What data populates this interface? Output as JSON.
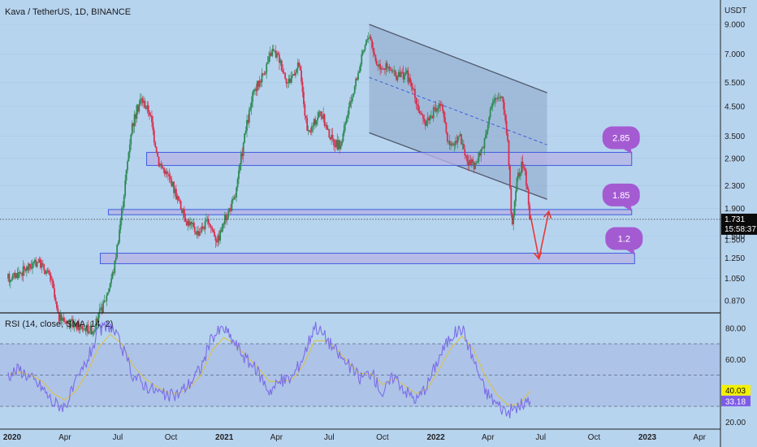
{
  "header": {
    "title": "Kava / TetherUS, 1D, BINANCE",
    "currency": "USDT"
  },
  "colors": {
    "background": "#b7d4ef",
    "up": "#2e8b57",
    "down": "#d9304f",
    "zone_fill": "#b7b4e4",
    "zone_stroke": "#3d5ee0",
    "channel_fill": "#8ea6c6",
    "channel_line": "#50586a",
    "callout": "#a45bd2",
    "arrow": "#e53935",
    "rsi": "#7b6ee6",
    "rsi_ma": "#e0c23a",
    "rsi_band": "#a9bde6",
    "last_price_bg": "#0b0b0b",
    "rsi_badge": "#f5f000",
    "sma_badge": "#7e5be6"
  },
  "chart_data": [
    {
      "type": "candlestick",
      "symbol": "Kava / TetherUS",
      "interval": "1D",
      "exchange": "BINANCE",
      "y_scale": "log",
      "ylim": [
        0.72,
        10.2
      ],
      "y_ticks": [
        "9.000",
        "7.000",
        "5.500",
        "4.500",
        "3.500",
        "2.900",
        "2.300",
        "1.900",
        "1.500",
        "1.250",
        "1.050",
        "0.870"
      ],
      "x_ticks": [
        "2020",
        "Apr",
        "Jul",
        "Oct",
        "2021",
        "Apr",
        "Jul",
        "Oct",
        "2022",
        "Apr",
        "Jul",
        "Oct",
        "2023",
        "Apr"
      ],
      "price_path": [
        [
          "2019-12-25",
          1.05
        ],
        [
          "2020-01-20",
          1.12
        ],
        [
          "2020-02-15",
          1.22
        ],
        [
          "2020-03-08",
          1.05
        ],
        [
          "2020-03-20",
          0.76
        ],
        [
          "2020-04-20",
          0.7
        ],
        [
          "2020-05-20",
          0.68
        ],
        [
          "2020-06-10",
          0.88
        ],
        [
          "2020-06-25",
          1.15
        ],
        [
          "2020-07-10",
          2.0
        ],
        [
          "2020-07-25",
          3.8
        ],
        [
          "2020-08-10",
          4.8
        ],
        [
          "2020-08-25",
          4.3
        ],
        [
          "2020-09-10",
          2.8
        ],
        [
          "2020-10-01",
          2.4
        ],
        [
          "2020-10-25",
          1.75
        ],
        [
          "2020-11-15",
          1.55
        ],
        [
          "2020-12-05",
          1.7
        ],
        [
          "2020-12-20",
          1.45
        ],
        [
          "2021-01-03",
          1.75
        ],
        [
          "2021-01-20",
          2.1
        ],
        [
          "2021-02-05",
          3.5
        ],
        [
          "2021-02-20",
          5.0
        ],
        [
          "2021-03-10",
          6.0
        ],
        [
          "2021-03-25",
          7.2
        ],
        [
          "2021-04-05",
          6.8
        ],
        [
          "2021-04-20",
          5.5
        ],
        [
          "2021-05-10",
          6.4
        ],
        [
          "2021-05-25",
          3.5
        ],
        [
          "2021-06-15",
          4.3
        ],
        [
          "2021-07-05",
          3.4
        ],
        [
          "2021-07-20",
          3.2
        ],
        [
          "2021-08-05",
          4.5
        ],
        [
          "2021-08-20",
          6.0
        ],
        [
          "2021-09-01",
          7.5
        ],
        [
          "2021-09-08",
          8.4
        ],
        [
          "2021-09-20",
          6.5
        ],
        [
          "2021-10-10",
          6.2
        ],
        [
          "2021-10-25",
          5.8
        ],
        [
          "2021-11-10",
          6.0
        ],
        [
          "2021-11-25",
          5.0
        ],
        [
          "2021-12-10",
          3.9
        ],
        [
          "2021-12-25",
          4.2
        ],
        [
          "2022-01-10",
          4.6
        ],
        [
          "2022-01-25",
          3.1
        ],
        [
          "2022-02-10",
          3.6
        ],
        [
          "2022-02-25",
          2.8
        ],
        [
          "2022-03-10",
          2.7
        ],
        [
          "2022-03-25",
          3.3
        ],
        [
          "2022-04-05",
          4.4
        ],
        [
          "2022-04-15",
          4.8
        ],
        [
          "2022-04-25",
          5.0
        ],
        [
          "2022-05-05",
          3.4
        ],
        [
          "2022-05-12",
          1.6
        ],
        [
          "2022-05-20",
          2.4
        ],
        [
          "2022-06-01",
          2.8
        ],
        [
          "2022-06-08",
          2.2
        ],
        [
          "2022-06-13",
          1.731
        ]
      ],
      "channel": {
        "upper": [
          [
            "2021-09-08",
            9.0
          ],
          [
            "2022-07-12",
            5.05
          ]
        ],
        "lower": [
          [
            "2021-09-08",
            3.6
          ],
          [
            "2022-07-12",
            2.05
          ]
        ],
        "midline": [
          [
            "2021-09-08",
            5.75
          ],
          [
            "2022-07-12",
            3.25
          ]
        ]
      },
      "zones": [
        {
          "label": "2.85",
          "from": "2020-08-20",
          "to": "2022-12-05",
          "low": 2.73,
          "high": 3.05
        },
        {
          "label": "1.85",
          "from": "2020-06-15",
          "to": "2022-12-05",
          "low": 1.8,
          "high": 1.88
        },
        {
          "label": "1.2",
          "from": "2020-06-01",
          "to": "2022-12-10",
          "low": 1.19,
          "high": 1.3
        }
      ],
      "projection": [
        [
          "2022-06-13",
          1.8
        ],
        [
          "2022-06-28",
          1.24
        ],
        [
          "2022-07-15",
          1.85
        ]
      ],
      "last_price": {
        "value": "1.731",
        "countdown": "15:58:37"
      },
      "partial_label": "1.500"
    },
    {
      "type": "line",
      "title": "RSI (14, close, SMA, 14, 2)",
      "ylim": [
        17,
        88
      ],
      "y_ticks": [
        "80.00",
        "60.00",
        "20.00"
      ],
      "levels": [
        70,
        50,
        30
      ],
      "series": [
        {
          "name": "RSI",
          "values": [
            50,
            54,
            48,
            42,
            32,
            30,
            45,
            60,
            78,
            82,
            68,
            50,
            44,
            40,
            36,
            38,
            45,
            55,
            75,
            80,
            70,
            60,
            52,
            40,
            46,
            48,
            62,
            82,
            74,
            64,
            56,
            48,
            52,
            38,
            50,
            40,
            34,
            45,
            62,
            75,
            80,
            60,
            40,
            32,
            26,
            30,
            33.18
          ]
        },
        {
          "name": "RSI-based MA",
          "values": [
            50,
            52,
            50,
            46,
            38,
            34,
            40,
            52,
            68,
            76,
            70,
            56,
            48,
            43,
            39,
            38,
            42,
            50,
            66,
            74,
            70,
            62,
            55,
            46,
            46,
            47,
            56,
            72,
            72,
            66,
            58,
            51,
            51,
            44,
            48,
            43,
            38,
            42,
            54,
            67,
            75,
            66,
            50,
            38,
            31,
            31,
            40.03
          ]
        }
      ],
      "x_from": "2019-12-25",
      "x_to": "2022-06-13",
      "current": {
        "rsi": "33.18",
        "ma": "40.03"
      }
    }
  ]
}
